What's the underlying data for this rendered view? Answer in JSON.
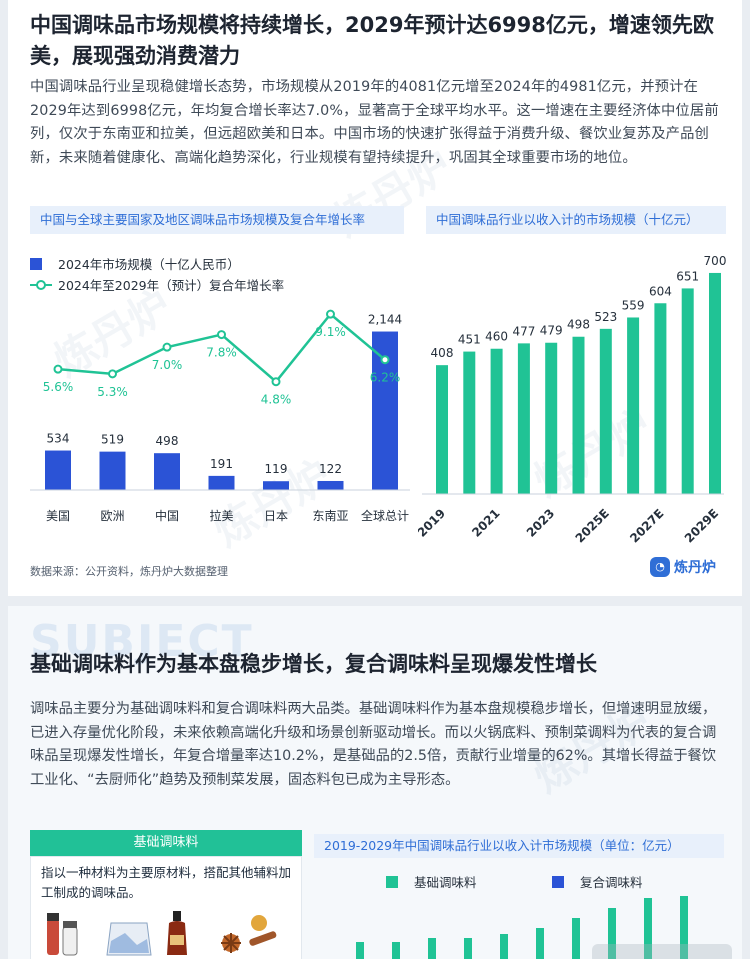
{
  "colors": {
    "blue": "#2b53d6",
    "green": "#20c395",
    "accent": "#2f6ed6",
    "header_bg": "#e8f0fb"
  },
  "section1": {
    "title": "中国调味品市场规模将持续增长，2029年预计达6998亿元，增速领先欧美，展现强劲消费潜力",
    "paragraph": "中国调味品行业呈现稳健增长态势，市场规模从2019年的4081亿元增至2024年的4981亿元，并预计在2029年达到6998亿元，年均复合增长率达7.0%，显著高于全球平均水平。这一增速在主要经济体中位居前列，仅次于东南亚和拉美，但远超欧美和日本。中国市场的快速扩张得益于消费升级、餐饮业复苏及产品创新，未来随着健康化、高端化趋势深化，行业规模有望持续提升，巩固其全球重要市场的地位。",
    "left_chart_title": "中国与全球主要国家及地区调味品市场规模及复合年增长率",
    "right_chart_title": "中国调味品行业以收入计的市场规模（十亿元）",
    "source": "数据来源：公开资料，炼丹炉大数据整理",
    "logo_text": "炼丹炉",
    "watermark": "炼丹炉"
  },
  "section2": {
    "bg_word": "SUBJECT",
    "title": "基础调味料作为基本盘稳步增长，复合调味料呈现爆发性增长",
    "paragraph": "调味品主要分为基础调味料和复合调味料两大品类。基础调味料作为基本盘规模稳步增长，但增速明显放缓，已进入存量优化阶段，未来依赖高端化升级和场景创新驱动增长。而以火锅底料、预制菜调料为代表的复合调味品呈现爆发性增长，年复合增量率达10.2%，是基础品的2.5倍，贡献行业增量的62%。其增长得益于餐饮工业化、“去厨师化”趋势及预制菜发展，固态料包已成为主导形态。",
    "box_title": "基础调味料",
    "box_text": "指以一种材料为主要原材料，搭配其他辅料加工制成的调味品。",
    "chart_title": "2019-2029年中国调味品行业以收入计市场规模（单位：亿元）"
  },
  "chart_data": [
    {
      "type": "bar+line",
      "title": "中国与全球主要国家及地区调味品市场规模及复合年增长率",
      "categories": [
        "美国",
        "欧洲",
        "中国",
        "拉美",
        "日本",
        "东南亚",
        "全球总计"
      ],
      "series": [
        {
          "name": "2024年市场规模（十亿人民币）",
          "type": "bar",
          "values": [
            534,
            519,
            498,
            191,
            119,
            122,
            2144
          ],
          "labels": [
            "534",
            "519",
            "498",
            "191",
            "119",
            "122",
            "2,144"
          ]
        },
        {
          "name": "2024年至2029年（预计）复合年增长率",
          "type": "line",
          "values": [
            5.6,
            5.3,
            7.0,
            7.8,
            4.8,
            9.1,
            6.2
          ],
          "labels": [
            "5.6%",
            "5.3%",
            "7.0%",
            "7.8%",
            "4.8%",
            "9.1%",
            "6.2%"
          ]
        }
      ],
      "legend": "top-left"
    },
    {
      "type": "bar",
      "title": "中国调味品行业以收入计的市场规模（十亿元）",
      "x": [
        "2019",
        "2020",
        "2021",
        "2022",
        "2023",
        "2024",
        "2025E",
        "2026E",
        "2027E",
        "2028E",
        "2029E"
      ],
      "tick_labels": [
        "2019",
        "2021",
        "2023",
        "2025E",
        "2027E",
        "2029E"
      ],
      "values": [
        408,
        451,
        460,
        477,
        479,
        498,
        523,
        559,
        604,
        651,
        700
      ]
    },
    {
      "type": "bar",
      "title": "2019-2029年中国调味品行业以收入计市场规模（单位：亿元）",
      "series": [
        {
          "name": "基础调味料"
        },
        {
          "name": "复合调味料"
        }
      ],
      "legend": "top"
    }
  ]
}
